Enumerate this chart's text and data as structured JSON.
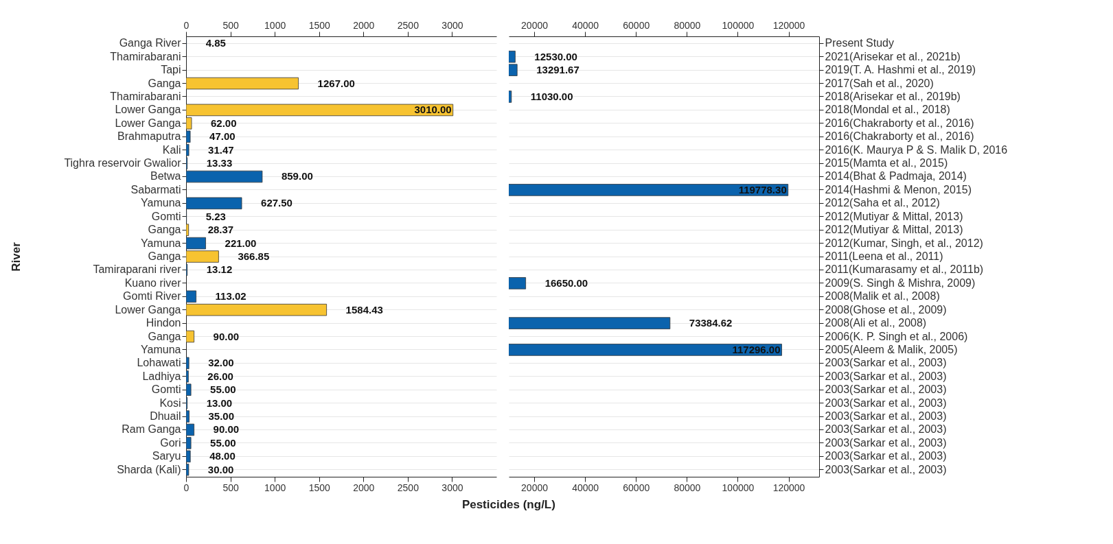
{
  "chart_data": [
    {
      "type": "bar",
      "orientation": "horizontal",
      "ylabel": "River",
      "xlabel": "Pesticides (ng/L)",
      "grid": "y",
      "categories": [
        "Ganga River",
        "Thamirabarani",
        "Tapi",
        "Ganga",
        "Thamirabarani",
        "Lower Ganga",
        "Lower Ganga",
        "Brahmaputra",
        "Kali",
        "Tighra reservoir Gwalior",
        "Betwa",
        "Sabarmati",
        "Yamuna",
        "Gomti",
        "Ganga",
        "Yamuna",
        "Ganga",
        "Tamiraparani river",
        "Kuano river",
        "Gomti River",
        "Lower Ganga",
        "Hindon",
        "Ganga",
        "Yamuna",
        "Lohawati",
        "Ladhiya",
        "Gomti",
        "Kosi",
        "Dhuail",
        "Ram Ganga",
        "Gori",
        "Saryu",
        "Sharda (Kali)"
      ],
      "values": [
        4.85,
        null,
        null,
        1267.0,
        null,
        3010.0,
        62.0,
        47.0,
        31.47,
        13.33,
        859.0,
        null,
        627.5,
        5.23,
        28.37,
        221.0,
        366.85,
        13.12,
        null,
        113.02,
        1584.43,
        null,
        90.0,
        null,
        32.0,
        26.0,
        55.0,
        13.0,
        35.0,
        90.0,
        55.0,
        48.0,
        30.0
      ],
      "value_labels": [
        "4.85",
        null,
        null,
        "1267.00",
        null,
        "3010.00",
        "62.00",
        "47.00",
        "31.47",
        "13.33",
        "859.00",
        null,
        "627.50",
        "5.23",
        "28.37",
        "221.00",
        "366.85",
        "13.12",
        null,
        "113.02",
        "1584.43",
        null,
        "90.00",
        null,
        "32.00",
        "26.00",
        "55.00",
        "13.00",
        "35.00",
        "90.00",
        "55.00",
        "48.00",
        "30.00"
      ],
      "colors": [
        "#0b63ad",
        "#0b63ad",
        "#0b63ad",
        "#f7c331",
        "#0b63ad",
        "#f7c331",
        "#f7c331",
        "#0b63ad",
        "#0b63ad",
        "#0b63ad",
        "#0b63ad",
        "#0b63ad",
        "#0b63ad",
        "#0b63ad",
        "#f7c331",
        "#0b63ad",
        "#f7c331",
        "#0b63ad",
        "#0b63ad",
        "#0b63ad",
        "#f7c331",
        "#0b63ad",
        "#f7c331",
        "#0b63ad",
        "#0b63ad",
        "#0b63ad",
        "#0b63ad",
        "#0b63ad",
        "#0b63ad",
        "#0b63ad",
        "#0b63ad",
        "#0b63ad",
        "#0b63ad"
      ],
      "xlim": [
        0,
        3500
      ],
      "xticks": [
        0,
        500,
        1000,
        1500,
        2000,
        2500,
        3000
      ],
      "x2lim": [
        0,
        3500
      ],
      "x2ticks": [
        0,
        500,
        1000,
        1500,
        2000,
        2500,
        3000
      ]
    },
    {
      "type": "bar",
      "orientation": "horizontal",
      "grid": "y",
      "tick_labels": "x",
      "y2_categories": [
        "Present Study",
        "2021(Arisekar et al., 2021b)",
        "2019(T. A. Hashmi et al., 2019)",
        "2017(Sah et al., 2020)",
        "2018(Arisekar et al., 2019b)",
        "2018(Mondal et al., 2018)",
        "2016(Chakraborty et al., 2016)",
        "2016(Chakraborty et al., 2016)",
        "2016(K. Maurya P & S. Malik D, 2016",
        "2015(Mamta et al., 2015)",
        "2014(Bhat & Padmaja, 2014)",
        "2014(Hashmi & Menon, 2015)",
        "2012(Saha et al., 2012)",
        "2012(Mutiyar & Mittal, 2013)",
        "2012(Mutiyar & Mittal, 2013)",
        "2012(Kumar, Singh, et al., 2012)",
        "2011(Leena et al., 2011)",
        "2011(Kumarasamy et al., 2011b)",
        "2009(S. Singh & Mishra, 2009)",
        "2008(Malik et al., 2008)",
        "2008(Ghose et al., 2009)",
        "2008(Ali et al., 2008)",
        "2006(K. P. Singh et al., 2006)",
        "2005(Aleem & Malik, 2005)",
        "2003(Sarkar et al., 2003)",
        "2003(Sarkar et al., 2003)",
        "2003(Sarkar et al., 2003)",
        "2003(Sarkar et al., 2003)",
        "2003(Sarkar et al., 2003)",
        "2003(Sarkar et al., 2003)",
        "2003(Sarkar et al., 2003)",
        "2003(Sarkar et al., 2003)",
        "2003(Sarkar et al., 2003)"
      ],
      "values": [
        null,
        12530.0,
        13291.67,
        null,
        11030.0,
        null,
        null,
        null,
        null,
        null,
        null,
        119778.3,
        null,
        null,
        null,
        null,
        null,
        null,
        16650.0,
        null,
        null,
        73384.62,
        null,
        117296.0,
        null,
        null,
        null,
        null,
        null,
        null,
        null,
        null,
        null
      ],
      "value_labels": [
        null,
        "12530.00",
        "13291.67",
        null,
        "11030.00",
        null,
        null,
        null,
        null,
        null,
        null,
        "119778.30",
        null,
        null,
        null,
        null,
        null,
        null,
        "16650.00",
        null,
        null,
        "73384.62",
        null,
        "117296.00",
        null,
        null,
        null,
        null,
        null,
        null,
        null,
        null,
        null
      ],
      "colors": [
        "#0b63ad",
        "#0b63ad",
        "#0b63ad",
        "#f7c331",
        "#0b63ad",
        "#f7c331",
        "#f7c331",
        "#0b63ad",
        "#0b63ad",
        "#0b63ad",
        "#0b63ad",
        "#0b63ad",
        "#0b63ad",
        "#0b63ad",
        "#f7c331",
        "#0b63ad",
        "#f7c331",
        "#0b63ad",
        "#0b63ad",
        "#0b63ad",
        "#f7c331",
        "#0b63ad",
        "#f7c331",
        "#0b63ad",
        "#0b63ad",
        "#0b63ad",
        "#0b63ad",
        "#0b63ad",
        "#0b63ad",
        "#0b63ad",
        "#0b63ad",
        "#0b63ad",
        "#0b63ad"
      ],
      "xlim": [
        10000,
        132000
      ],
      "xticks": [
        20000,
        40000,
        60000,
        80000,
        100000,
        120000
      ],
      "x2lim": [
        10000,
        132000
      ],
      "x2ticks": [
        20000,
        40000,
        60000,
        80000,
        100000,
        120000
      ]
    }
  ]
}
